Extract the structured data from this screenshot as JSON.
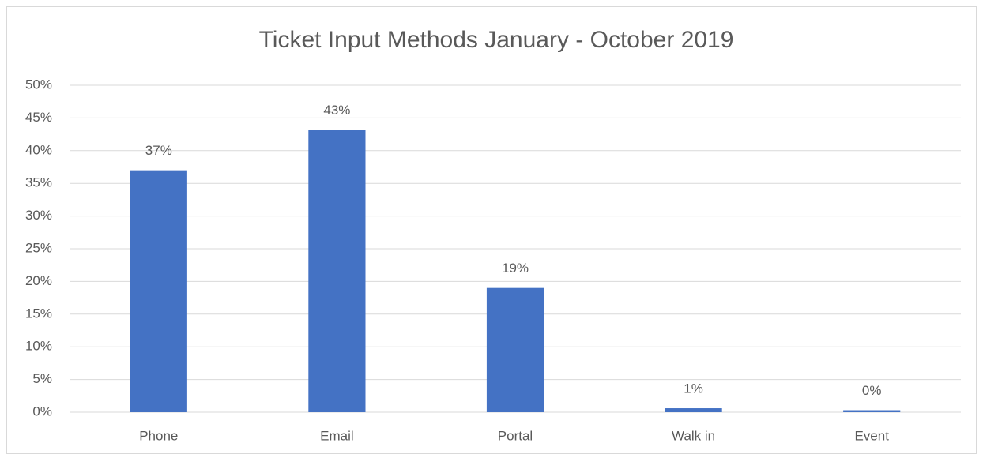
{
  "chart_data": {
    "type": "bar",
    "title": "Ticket Input Methods January - October 2019",
    "categories": [
      "Phone",
      "Email",
      "Portal",
      "Walk in",
      "Event"
    ],
    "values": [
      37,
      43.2,
      19,
      0.6,
      0.3
    ],
    "value_labels": [
      "37%",
      "43%",
      "19%",
      "1%",
      "0%"
    ],
    "color": "#4472c4",
    "ylim": [
      0,
      50
    ],
    "yticks": [
      {
        "value": 0,
        "label": "0%"
      },
      {
        "value": 5,
        "label": "5%"
      },
      {
        "value": 10,
        "label": "10%"
      },
      {
        "value": 15,
        "label": "15%"
      },
      {
        "value": 20,
        "label": "20%"
      },
      {
        "value": 25,
        "label": "25%"
      },
      {
        "value": 30,
        "label": "30%"
      },
      {
        "value": 35,
        "label": "35%"
      },
      {
        "value": 40,
        "label": "40%"
      },
      {
        "value": 45,
        "label": "45%"
      },
      {
        "value": 50,
        "label": "50%"
      }
    ],
    "grid": true
  }
}
